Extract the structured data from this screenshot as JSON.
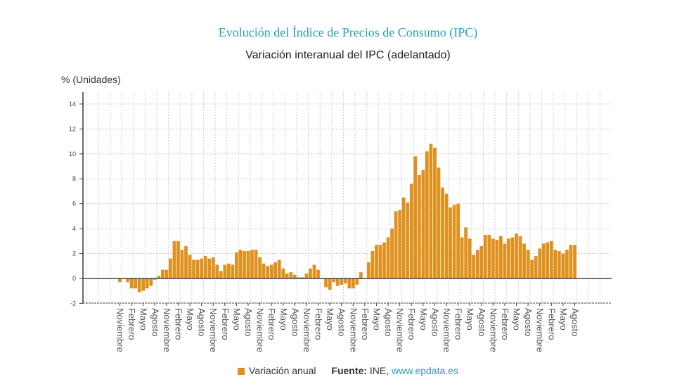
{
  "chart_data": {
    "type": "bar",
    "title": "Evolución del Índice de Precios de Consumo (IPC)",
    "subtitle": "Variación interanual del IPC (adelantado)",
    "ylabel": "% (Unidades)",
    "ylim": [
      -2,
      14
    ],
    "yticks": [
      -2,
      0,
      2,
      4,
      6,
      8,
      10,
      12,
      14
    ],
    "grid": true,
    "legend_placement": "bottom",
    "bar_color": "#e0901c",
    "title_color": "#2a9fbf",
    "x_start": "2015-11",
    "x_tick_labels": [
      "Noviembre",
      "Febrero",
      "Mayo",
      "Agosto",
      "Noviembre",
      "Febrero",
      "Mayo",
      "Agosto",
      "Noviembre",
      "Febrero",
      "Mayo",
      "Agosto",
      "Noviembre",
      "Febrero",
      "Mayo",
      "Agosto",
      "Noviembre",
      "Febrero",
      "Mayo",
      "Agosto",
      "Noviembre",
      "Febrero",
      "Mayo",
      "Agosto",
      "Noviembre",
      "Febrero",
      "Mayo",
      "Agosto",
      "Noviembre",
      "Febrero",
      "Mayo",
      "Agosto",
      "Noviembre",
      "Febrero",
      "Mayo",
      "Agosto",
      "Noviembre",
      "Febrero",
      "Mayo",
      "Agosto"
    ],
    "series": [
      {
        "name": "Variación anual",
        "values": [
          -0.3,
          0.0,
          -0.3,
          -0.8,
          -0.8,
          -1.1,
          -1.0,
          -0.8,
          -0.6,
          -0.1,
          0.2,
          0.7,
          0.7,
          1.6,
          3.0,
          3.0,
          2.3,
          2.6,
          1.9,
          1.5,
          1.5,
          1.6,
          1.8,
          1.6,
          1.7,
          1.1,
          0.6,
          1.1,
          1.2,
          1.1,
          2.1,
          2.3,
          2.2,
          2.2,
          2.3,
          2.3,
          1.7,
          1.2,
          1.0,
          1.1,
          1.3,
          1.5,
          0.8,
          0.4,
          0.5,
          0.3,
          0.1,
          0.1,
          0.4,
          0.8,
          1.1,
          0.7,
          0.0,
          -0.7,
          -0.9,
          -0.3,
          -0.6,
          -0.5,
          -0.4,
          -0.8,
          -0.8,
          -0.5,
          0.5,
          0.0,
          1.3,
          2.2,
          2.7,
          2.7,
          2.9,
          3.3,
          4.0,
          5.4,
          5.5,
          6.5,
          6.1,
          7.6,
          9.8,
          8.3,
          8.7,
          10.2,
          10.8,
          10.5,
          8.9,
          7.3,
          6.8,
          5.7,
          5.9,
          6.0,
          3.3,
          4.1,
          3.2,
          1.9,
          2.3,
          2.6,
          3.5,
          3.5,
          3.2,
          3.1,
          3.4,
          2.8,
          3.2,
          3.3,
          3.6,
          3.4,
          2.8,
          2.3,
          1.5,
          1.8,
          2.4,
          2.8,
          2.9,
          3.0,
          2.3,
          2.2,
          2.0,
          2.3,
          2.7,
          2.7
        ]
      }
    ]
  },
  "legend": {
    "series_label": "Variación anual",
    "source_label": "Fuente:",
    "source_name": "INE,",
    "source_link": "www.epdata.es"
  }
}
